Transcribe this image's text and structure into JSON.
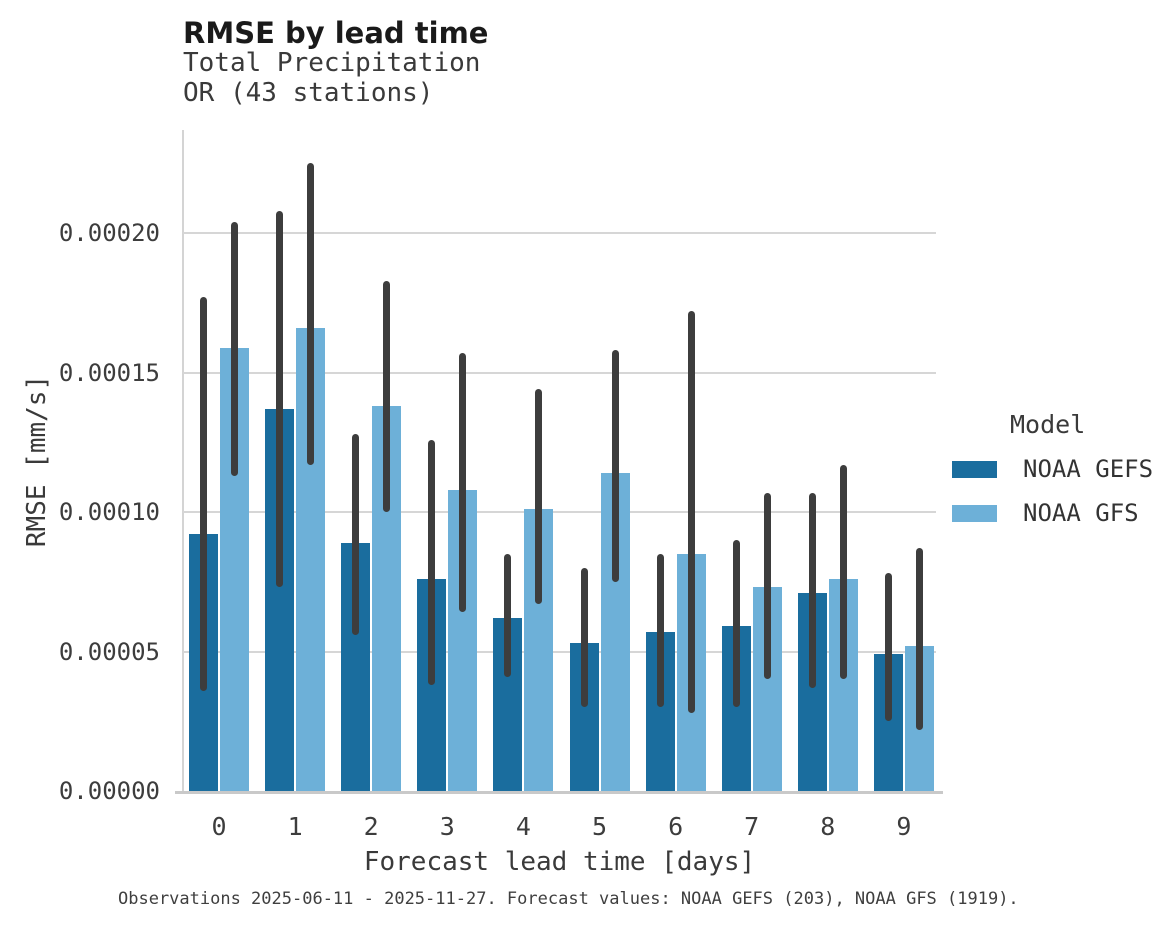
{
  "header": {
    "title": "RMSE by lead time",
    "subtitle_line1": "Total Precipitation",
    "subtitle_line2": "OR (43 stations)"
  },
  "legend": {
    "title": "Model",
    "items": [
      {
        "label": "NOAA GEFS",
        "color": "#1a6d9e"
      },
      {
        "label": "NOAA GFS",
        "color": "#6db0d8"
      }
    ]
  },
  "footer": {
    "caption": "Observations 2025-06-11 - 2025-11-27. Forecast values: NOAA GEFS (203), NOAA GFS (1919)."
  },
  "chart_data": {
    "type": "bar",
    "title": "RMSE by lead time",
    "subtitle": [
      "Total Precipitation",
      "OR (43 stations)"
    ],
    "xlabel": "Forecast lead time [days]",
    "ylabel": "RMSE [mm/s]",
    "categories": [
      "0",
      "1",
      "2",
      "3",
      "4",
      "5",
      "6",
      "7",
      "8",
      "9"
    ],
    "ylim": [
      0,
      0.000237
    ],
    "yticks": [
      0,
      5e-05,
      0.0001,
      0.00015,
      0.0002
    ],
    "ytick_labels": [
      "0.00000",
      "0.00005",
      "0.00010",
      "0.00015",
      "0.00020"
    ],
    "grid": true,
    "legend_position": "right",
    "error_bar_color": "#3d3d3d",
    "series": [
      {
        "name": "NOAA GEFS",
        "color": "#1a6d9e",
        "values": [
          9.2e-05,
          0.000137,
          8.9e-05,
          7.6e-05,
          6.2e-05,
          5.3e-05,
          5.7e-05,
          5.9e-05,
          7.1e-05,
          4.9e-05
        ],
        "err_low": [
          3.6e-05,
          7.3e-05,
          5.6e-05,
          3.8e-05,
          4.1e-05,
          3e-05,
          3e-05,
          3e-05,
          3.7e-05,
          2.5e-05
        ],
        "err_high": [
          0.000177,
          0.000208,
          0.000128,
          0.000126,
          8.5e-05,
          8e-05,
          8.5e-05,
          9e-05,
          0.000107,
          7.8e-05
        ]
      },
      {
        "name": "NOAA GFS",
        "color": "#6db0d8",
        "values": [
          0.000159,
          0.000166,
          0.000138,
          0.000108,
          0.000101,
          0.000114,
          8.5e-05,
          7.3e-05,
          7.6e-05,
          5.2e-05
        ],
        "err_low": [
          0.000113,
          0.000117,
          0.0001,
          6.4e-05,
          6.7e-05,
          7.5e-05,
          2.8e-05,
          4e-05,
          4e-05,
          2.2e-05
        ],
        "err_high": [
          0.000204,
          0.000225,
          0.000183,
          0.000157,
          0.000144,
          0.000158,
          0.000172,
          0.000107,
          0.000117,
          8.7e-05
        ]
      }
    ]
  }
}
